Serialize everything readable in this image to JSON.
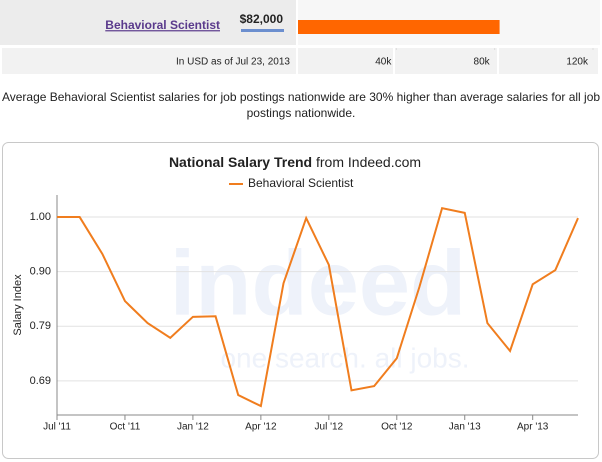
{
  "chart_data": [
    {
      "type": "hbar",
      "categories": [
        "Behavioral Scientist"
      ],
      "values": [
        82000
      ],
      "value_labels": [
        "$82,000"
      ],
      "xlabel": "In USD as of Jul 23, 2013",
      "xlim": [
        0,
        120000
      ],
      "xticks": [
        {
          "value": 40000,
          "label": "40k"
        },
        {
          "value": 80000,
          "label": "80k"
        },
        {
          "value": 120000,
          "label": "120k"
        }
      ],
      "color": "#ff6600"
    },
    {
      "type": "line",
      "title": "National Salary Trend",
      "subtitle": "from Indeed.com",
      "ylabel": "Salary Index",
      "categories": [
        "Jul '11",
        null,
        null,
        "Oct '11",
        null,
        null,
        "Jan '12",
        null,
        null,
        "Apr '12",
        null,
        null,
        "Jul '12",
        null,
        null,
        "Oct '12",
        null,
        null,
        "Jan '13",
        null,
        null,
        "Apr '13",
        null,
        null
      ],
      "series": [
        {
          "name": "Behavioral Scientist",
          "color": "#f07d1e",
          "values": [
            1.0,
            1.0,
            0.93,
            0.84,
            0.798,
            0.77,
            0.81,
            0.811,
            0.661,
            0.64,
            0.874,
            0.998,
            0.909,
            0.67,
            0.678,
            0.731,
            0.867,
            1.017,
            1.008,
            0.798,
            0.745,
            0.872,
            0.899,
            0.998
          ]
        }
      ],
      "ylim": [
        0.623,
        1.042
      ],
      "yticks": [
        {
          "value": 0.688,
          "label": "0.69"
        },
        {
          "value": 0.792,
          "label": "0.79"
        },
        {
          "value": 0.896,
          "label": "0.90"
        },
        {
          "value": 1.0,
          "label": "1.00"
        }
      ],
      "grid": true,
      "watermark": {
        "logo": "indeed",
        "tagline": "one search. all jobs."
      }
    }
  ],
  "summary": "Average Behavioral Scientist salaries for job postings nationwide are 30% higher than average salaries for all job postings nationwide."
}
